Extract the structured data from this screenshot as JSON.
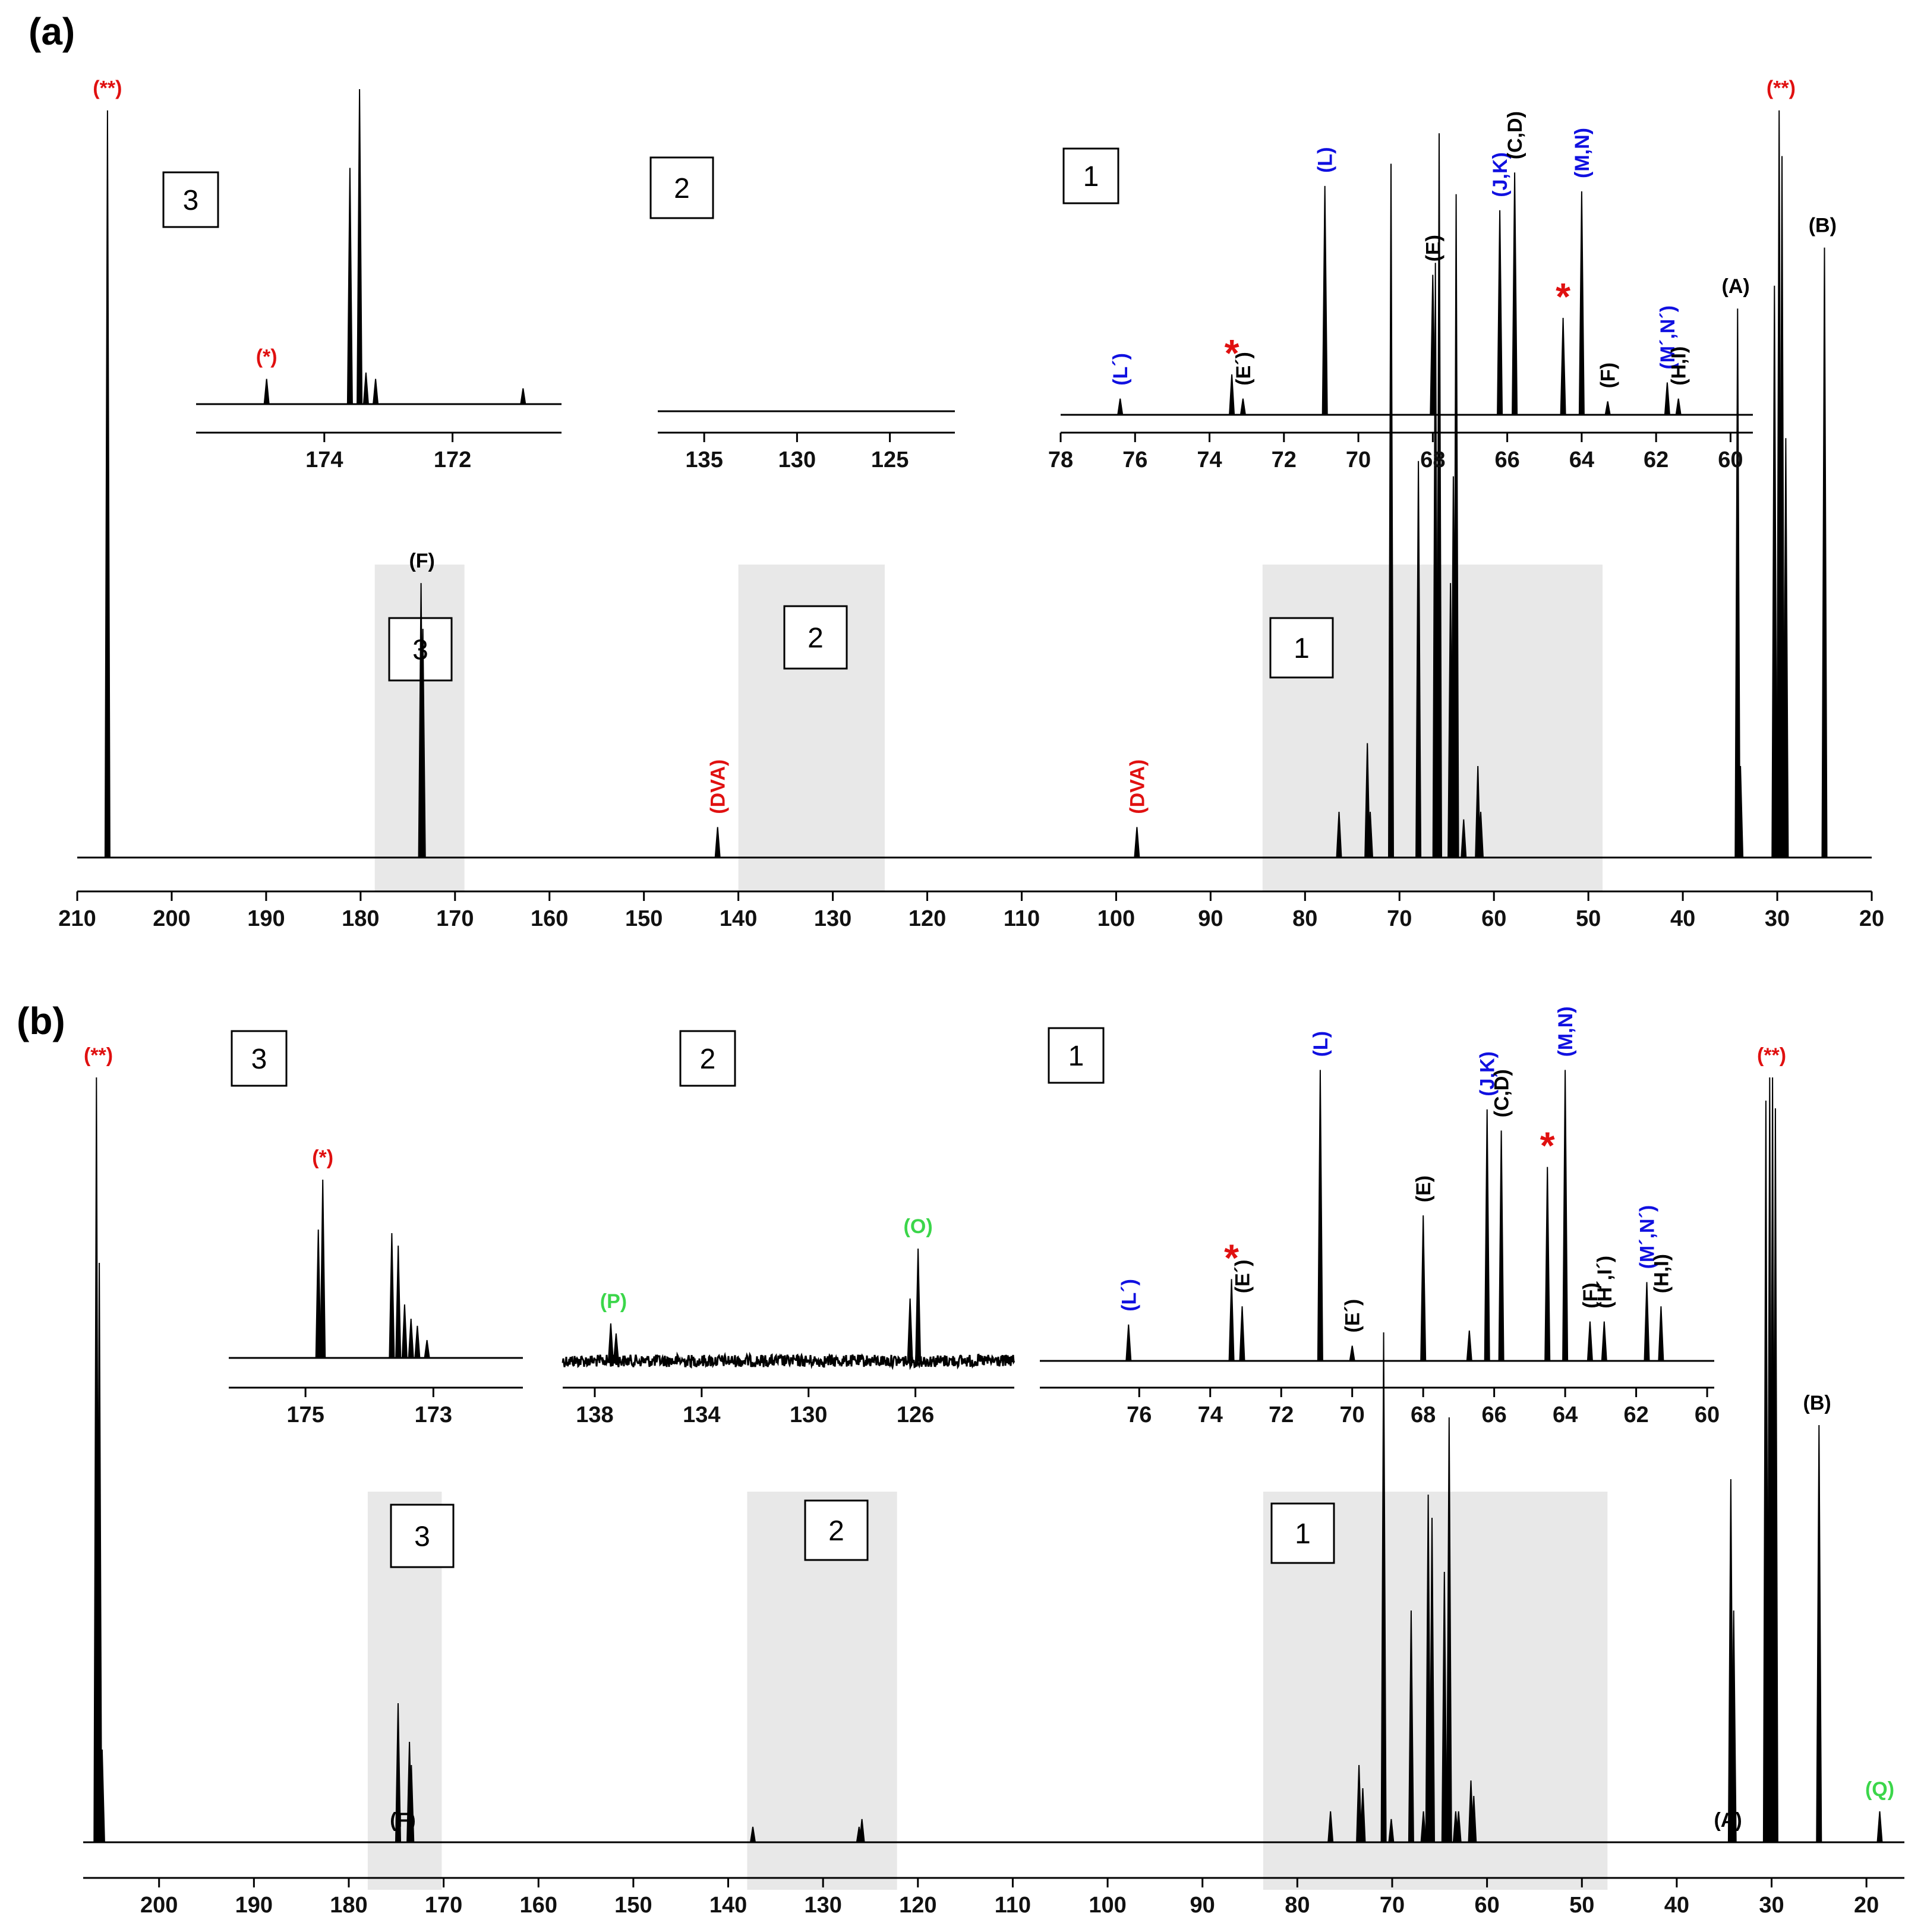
{
  "colors": {
    "black": "#000000",
    "red": "#e01010",
    "blue": "#1010e0",
    "green": "#3bd64a",
    "shade": "#e8e8e8"
  },
  "chart_data": [
    {
      "panel": "(a)",
      "type": "line",
      "title": "",
      "xlabel": "",
      "ylabel": "",
      "x_axis": {
        "range": [
          210,
          20
        ],
        "reversed": true,
        "ticks": [
          210,
          200,
          190,
          180,
          170,
          160,
          150,
          140,
          130,
          120,
          110,
          100,
          90,
          80,
          70,
          60,
          50,
          40,
          30,
          20
        ]
      },
      "shaded_regions": [
        {
          "label": "3",
          "from": 178.5,
          "to": 169
        },
        {
          "label": "2",
          "from": 140,
          "to": 124.5
        },
        {
          "label": "1",
          "from": 84.5,
          "to": 48.5
        }
      ],
      "main_peaks": [
        {
          "x": 206.8,
          "h": 0.98
        },
        {
          "x": 173.6,
          "h": 0.36
        },
        {
          "x": 173.4,
          "h": 0.3
        },
        {
          "x": 142.2,
          "h": 0.04
        },
        {
          "x": 97.8,
          "h": 0.04
        },
        {
          "x": 76.4,
          "h": 0.06
        },
        {
          "x": 73.4,
          "h": 0.15
        },
        {
          "x": 73.1,
          "h": 0.06
        },
        {
          "x": 70.9,
          "h": 0.91
        },
        {
          "x": 68.0,
          "h": 0.52
        },
        {
          "x": 66.2,
          "h": 0.78
        },
        {
          "x": 65.8,
          "h": 0.95
        },
        {
          "x": 64.6,
          "h": 0.36
        },
        {
          "x": 64.3,
          "h": 0.5
        },
        {
          "x": 64.0,
          "h": 0.87
        },
        {
          "x": 63.2,
          "h": 0.05
        },
        {
          "x": 61.7,
          "h": 0.12
        },
        {
          "x": 61.4,
          "h": 0.06
        },
        {
          "x": 34.2,
          "h": 0.72
        },
        {
          "x": 33.9,
          "h": 0.12
        },
        {
          "x": 30.3,
          "h": 0.75
        },
        {
          "x": 29.8,
          "h": 0.98
        },
        {
          "x": 29.5,
          "h": 0.92
        },
        {
          "x": 29.1,
          "h": 0.55
        },
        {
          "x": 25.0,
          "h": 0.8
        }
      ],
      "main_labels": [
        {
          "text": "(**)",
          "x": 206.8,
          "color": "red",
          "vertical": false
        },
        {
          "text": "(F)",
          "x": 173.5,
          "color": "black",
          "vertical": false
        },
        {
          "text": "(DVA)",
          "x": 142.2,
          "color": "red",
          "vertical": true
        },
        {
          "text": "(DVA)",
          "x": 97.8,
          "color": "red",
          "vertical": true
        },
        {
          "text": "(A)",
          "x": 34.4,
          "color": "black",
          "vertical": false
        },
        {
          "text": "(**)",
          "x": 29.6,
          "color": "red",
          "vertical": false
        },
        {
          "text": "(B)",
          "x": 25.2,
          "color": "black",
          "vertical": false
        }
      ],
      "insets": [
        {
          "box_label": "3",
          "range": [
            176,
            170.3
          ],
          "ticks": [
            174,
            172
          ],
          "noise": 0.0,
          "peaks": [
            {
              "x": 174.9,
              "h": 0.08
            },
            {
              "x": 173.6,
              "h": 0.75
            },
            {
              "x": 173.45,
              "h": 1.0
            },
            {
              "x": 173.35,
              "h": 0.1
            },
            {
              "x": 173.2,
              "h": 0.08
            },
            {
              "x": 170.9,
              "h": 0.05
            }
          ],
          "labels": [
            {
              "text": "(*)",
              "x": 174.9,
              "color": "red",
              "vertical": false,
              "star": false
            }
          ]
        },
        {
          "box_label": "2",
          "range": [
            137.5,
            121.5
          ],
          "ticks": [
            135,
            130,
            125
          ],
          "noise": 0.0,
          "peaks": [],
          "labels": []
        },
        {
          "box_label": "1",
          "range": [
            78,
            59.4
          ],
          "ticks": [
            78,
            76,
            74,
            72,
            70,
            68,
            66,
            64,
            62,
            60
          ],
          "noise": 0.0,
          "peaks": [
            {
              "x": 76.4,
              "h": 0.06
            },
            {
              "x": 73.4,
              "h": 0.15
            },
            {
              "x": 73.1,
              "h": 0.06
            },
            {
              "x": 70.9,
              "h": 0.85
            },
            {
              "x": 68.0,
              "h": 0.52
            },
            {
              "x": 66.2,
              "h": 0.76
            },
            {
              "x": 65.8,
              "h": 0.9
            },
            {
              "x": 64.5,
              "h": 0.36
            },
            {
              "x": 64.0,
              "h": 0.83
            },
            {
              "x": 63.3,
              "h": 0.05
            },
            {
              "x": 61.7,
              "h": 0.12
            },
            {
              "x": 61.4,
              "h": 0.06
            }
          ],
          "labels": [
            {
              "text": "(L´)",
              "x": 76.4,
              "color": "blue",
              "vertical": true,
              "star": false
            },
            {
              "text": "*",
              "x": 73.4,
              "color": "red",
              "vertical": false,
              "star": true
            },
            {
              "text": "(E´)",
              "x": 73.1,
              "color": "black",
              "vertical": true,
              "star": false
            },
            {
              "text": "(L)",
              "x": 70.9,
              "color": "blue",
              "vertical": true,
              "star": false
            },
            {
              "text": "(E)",
              "x": 68.0,
              "color": "black",
              "vertical": true,
              "star": false
            },
            {
              "text": "(J,K)",
              "x": 66.2,
              "color": "blue",
              "vertical": true,
              "star": false
            },
            {
              "text": "(C,D)",
              "x": 65.8,
              "color": "black",
              "vertical": true,
              "star": false
            },
            {
              "text": "*",
              "x": 64.5,
              "color": "red",
              "vertical": false,
              "star": true
            },
            {
              "text": "(M,N)",
              "x": 64.0,
              "color": "blue",
              "vertical": true,
              "star": false
            },
            {
              "text": "(F)",
              "x": 63.3,
              "color": "black",
              "vertical": true,
              "star": false
            },
            {
              "text": "(M´,N´)",
              "x": 61.7,
              "color": "blue",
              "vertical": true,
              "star": false
            },
            {
              "text": "(H,I)",
              "x": 61.4,
              "color": "black",
              "vertical": true,
              "star": false
            }
          ]
        }
      ]
    },
    {
      "panel": "(b)",
      "type": "line",
      "title": "",
      "xlabel": "",
      "ylabel": "",
      "x_axis": {
        "range": [
          208,
          16
        ],
        "reversed": true,
        "ticks": [
          200,
          190,
          180,
          170,
          160,
          150,
          140,
          130,
          120,
          110,
          100,
          90,
          80,
          70,
          60,
          50,
          40,
          30,
          20
        ]
      },
      "shaded_regions": [
        {
          "label": "3",
          "from": 178,
          "to": 170.2
        },
        {
          "label": "2",
          "from": 138,
          "to": 122.2
        },
        {
          "label": "1",
          "from": 83.6,
          "to": 47.3
        }
      ],
      "main_peaks": [
        {
          "x": 206.6,
          "h": 0.99
        },
        {
          "x": 206.3,
          "h": 0.75
        },
        {
          "x": 206.0,
          "h": 0.12
        },
        {
          "x": 174.8,
          "h": 0.18
        },
        {
          "x": 173.6,
          "h": 0.13
        },
        {
          "x": 173.4,
          "h": 0.1
        },
        {
          "x": 137.4,
          "h": 0.02
        },
        {
          "x": 126.2,
          "h": 0.02
        },
        {
          "x": 125.9,
          "h": 0.03
        },
        {
          "x": 76.5,
          "h": 0.04
        },
        {
          "x": 73.5,
          "h": 0.1
        },
        {
          "x": 73.1,
          "h": 0.07
        },
        {
          "x": 70.9,
          "h": 0.66
        },
        {
          "x": 70.1,
          "h": 0.03
        },
        {
          "x": 68.0,
          "h": 0.3
        },
        {
          "x": 66.7,
          "h": 0.04
        },
        {
          "x": 66.2,
          "h": 0.45
        },
        {
          "x": 65.8,
          "h": 0.42
        },
        {
          "x": 64.5,
          "h": 0.35
        },
        {
          "x": 64.0,
          "h": 0.55
        },
        {
          "x": 63.3,
          "h": 0.04
        },
        {
          "x": 63.0,
          "h": 0.04
        },
        {
          "x": 61.7,
          "h": 0.08
        },
        {
          "x": 61.4,
          "h": 0.06
        },
        {
          "x": 34.3,
          "h": 0.47
        },
        {
          "x": 34.0,
          "h": 0.3
        },
        {
          "x": 30.6,
          "h": 0.96
        },
        {
          "x": 30.2,
          "h": 0.99
        },
        {
          "x": 29.9,
          "h": 0.99
        },
        {
          "x": 29.6,
          "h": 0.95
        },
        {
          "x": 25.0,
          "h": 0.54
        },
        {
          "x": 18.6,
          "h": 0.04
        }
      ],
      "main_labels": [
        {
          "text": "(**)",
          "x": 206.4,
          "color": "red",
          "vertical": false
        },
        {
          "text": "(F)",
          "x": 174.3,
          "color": "black",
          "vertical": false
        },
        {
          "text": "(A)",
          "x": 34.6,
          "color": "black",
          "vertical": false
        },
        {
          "text": "(**)",
          "x": 30.0,
          "color": "red",
          "vertical": false
        },
        {
          "text": "(B)",
          "x": 25.2,
          "color": "black",
          "vertical": false
        },
        {
          "text": "(Q)",
          "x": 18.6,
          "color": "green",
          "vertical": false
        }
      ],
      "insets": [
        {
          "box_label": "3",
          "range": [
            176.2,
            171.6
          ],
          "ticks": [
            175,
            173
          ],
          "noise": 0.0,
          "peaks": [
            {
              "x": 174.8,
              "h": 0.72
            },
            {
              "x": 174.73,
              "h": 1.0
            },
            {
              "x": 173.65,
              "h": 0.7
            },
            {
              "x": 173.55,
              "h": 0.63
            },
            {
              "x": 173.45,
              "h": 0.3
            },
            {
              "x": 173.35,
              "h": 0.22
            },
            {
              "x": 173.25,
              "h": 0.18
            },
            {
              "x": 173.1,
              "h": 0.1
            }
          ],
          "labels": [
            {
              "text": "(*)",
              "x": 174.73,
              "color": "red",
              "vertical": false,
              "star": false
            }
          ]
        },
        {
          "box_label": "2",
          "range": [
            139.2,
            122.3
          ],
          "ticks": [
            138,
            134,
            130,
            126
          ],
          "noise": 0.1,
          "peaks": [
            {
              "x": 137.4,
              "h": 0.3
            },
            {
              "x": 137.2,
              "h": 0.22
            },
            {
              "x": 126.2,
              "h": 0.5
            },
            {
              "x": 125.9,
              "h": 0.9
            }
          ],
          "labels": [
            {
              "text": "(P)",
              "x": 137.3,
              "color": "green",
              "vertical": false,
              "star": false
            },
            {
              "text": "(O)",
              "x": 125.9,
              "color": "green",
              "vertical": false,
              "star": false
            }
          ]
        },
        {
          "box_label": "1",
          "range": [
            78.8,
            59.8
          ],
          "ticks": [
            76,
            74,
            72,
            70,
            68,
            66,
            64,
            62,
            60
          ],
          "noise": 0.0,
          "peaks": [
            {
              "x": 76.3,
              "h": 0.12
            },
            {
              "x": 73.4,
              "h": 0.27
            },
            {
              "x": 73.1,
              "h": 0.18
            },
            {
              "x": 70.9,
              "h": 0.96
            },
            {
              "x": 70.0,
              "h": 0.05
            },
            {
              "x": 68.0,
              "h": 0.48
            },
            {
              "x": 66.7,
              "h": 0.1
            },
            {
              "x": 66.2,
              "h": 0.83
            },
            {
              "x": 65.8,
              "h": 0.76
            },
            {
              "x": 64.5,
              "h": 0.64
            },
            {
              "x": 64.0,
              "h": 0.96
            },
            {
              "x": 63.3,
              "h": 0.13
            },
            {
              "x": 62.9,
              "h": 0.13
            },
            {
              "x": 61.7,
              "h": 0.26
            },
            {
              "x": 61.3,
              "h": 0.18
            }
          ],
          "labels": [
            {
              "text": "(L´)",
              "x": 76.3,
              "color": "blue",
              "vertical": true,
              "star": false
            },
            {
              "text": "*",
              "x": 73.4,
              "color": "red",
              "vertical": false,
              "star": true
            },
            {
              "text": "(E´)",
              "x": 73.1,
              "color": "black",
              "vertical": true,
              "star": false
            },
            {
              "text": "(L)",
              "x": 70.9,
              "color": "blue",
              "vertical": true,
              "star": false
            },
            {
              "text": "(E´)",
              "x": 70.0,
              "color": "black",
              "vertical": true,
              "star": false
            },
            {
              "text": "(E)",
              "x": 68.0,
              "color": "black",
              "vertical": true,
              "star": false
            },
            {
              "text": "(J,K)",
              "x": 66.2,
              "color": "blue",
              "vertical": true,
              "star": false
            },
            {
              "text": "(C,D)",
              "x": 65.8,
              "color": "black",
              "vertical": true,
              "star": false
            },
            {
              "text": "*",
              "x": 64.5,
              "color": "red",
              "vertical": false,
              "star": true
            },
            {
              "text": "(M,N)",
              "x": 64.0,
              "color": "blue",
              "vertical": true,
              "star": false
            },
            {
              "text": "(F)",
              "x": 63.3,
              "color": "black",
              "vertical": true,
              "star": false
            },
            {
              "text": "(H´,I´)",
              "x": 62.9,
              "color": "black",
              "vertical": true,
              "star": false
            },
            {
              "text": "(M´,N´)",
              "x": 61.7,
              "color": "blue",
              "vertical": true,
              "star": false
            },
            {
              "text": "(H,I)",
              "x": 61.3,
              "color": "black",
              "vertical": true,
              "star": false
            }
          ]
        }
      ]
    }
  ]
}
